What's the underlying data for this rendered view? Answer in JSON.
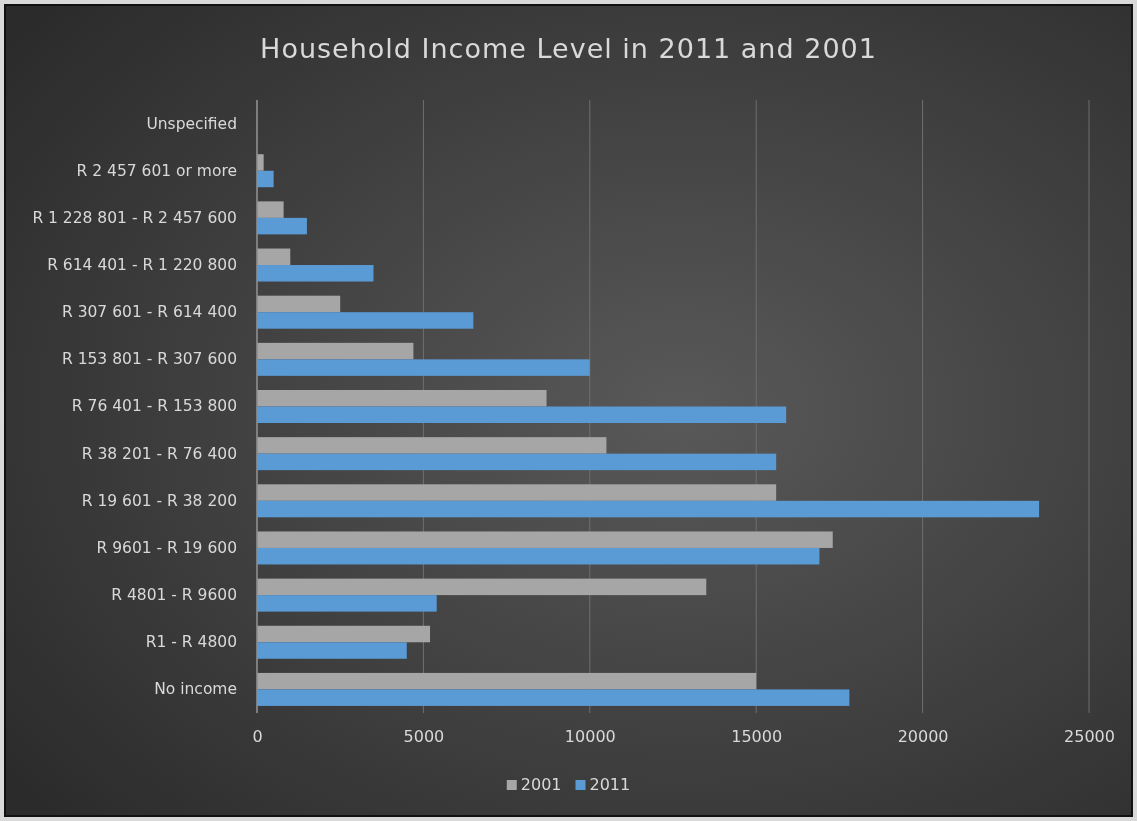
{
  "chart_data": {
    "type": "bar",
    "orientation": "horizontal",
    "title": "Household Income Level in 2011 and 2001",
    "categories": [
      "Unspecified",
      "R 2 457 601 or more",
      "R 1 228 801 - R 2 457 600",
      "R 614 401 - R 1 220 800",
      "R 307 601 - R 614 400",
      "R 153 801 - R 307 600",
      "R 76 401 - R 153 800",
      "R 38 201 - R 76 400",
      "R 19 601 - R 38 200",
      "R 9601 - R 19 600",
      "R 4801 - R 9600",
      "R1 - R 4800",
      "No income"
    ],
    "series": [
      {
        "name": "2001",
        "color": "#a6a6a6",
        "values": [
          0,
          200,
          800,
          1000,
          2500,
          4700,
          8700,
          10500,
          15600,
          17300,
          13500,
          5200,
          15000
        ]
      },
      {
        "name": "2011",
        "color": "#5b9bd5",
        "values": [
          0,
          500,
          1500,
          3500,
          6500,
          10000,
          15900,
          15600,
          23500,
          16900,
          5400,
          4500,
          17800
        ]
      }
    ],
    "xlim": [
      0,
      25000
    ],
    "xticks": [
      0,
      5000,
      10000,
      15000,
      20000,
      25000
    ],
    "grid": "x",
    "legend": "bottom"
  }
}
